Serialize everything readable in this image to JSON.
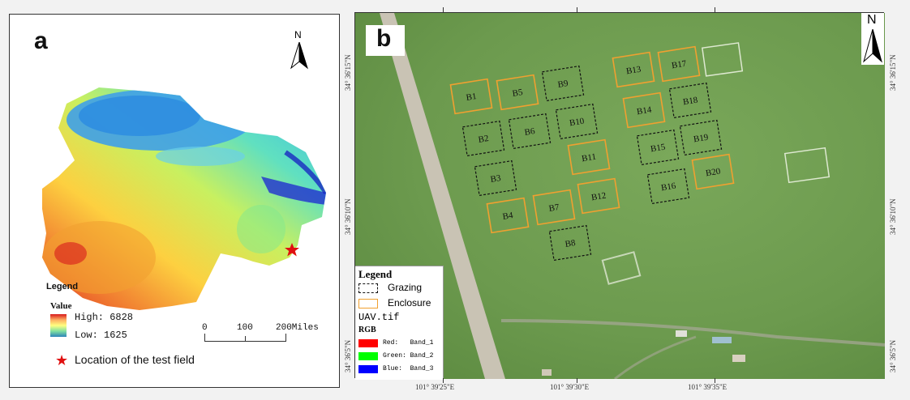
{
  "panel_a": {
    "letter": "a",
    "north": "N",
    "legend_title": "Legend",
    "value_label": "Value",
    "high": "High: 6828",
    "low": "Low: 1625",
    "scale_labels": [
      "0",
      "100",
      "200Miles"
    ],
    "location_label": "Location of the test field",
    "colors": {
      "high": "#d7191c",
      "mid_high": "#fdae61",
      "mid": "#ffff80",
      "mid_low": "#80e0a0",
      "low": "#2b83ba",
      "deep": "#1010c0"
    }
  },
  "panel_b": {
    "letter": "b",
    "north": "N",
    "plots": [
      {
        "id": "B1",
        "type": "enclosure"
      },
      {
        "id": "B2",
        "type": "grazing"
      },
      {
        "id": "B3",
        "type": "grazing"
      },
      {
        "id": "B4",
        "type": "enclosure"
      },
      {
        "id": "B5",
        "type": "enclosure"
      },
      {
        "id": "B6",
        "type": "grazing"
      },
      {
        "id": "B7",
        "type": "enclosure"
      },
      {
        "id": "B8",
        "type": "grazing"
      },
      {
        "id": "B9",
        "type": "grazing"
      },
      {
        "id": "B10",
        "type": "grazing"
      },
      {
        "id": "B11",
        "type": "enclosure"
      },
      {
        "id": "B12",
        "type": "enclosure"
      },
      {
        "id": "B13",
        "type": "enclosure"
      },
      {
        "id": "B14",
        "type": "enclosure"
      },
      {
        "id": "B15",
        "type": "grazing"
      },
      {
        "id": "B16",
        "type": "grazing"
      },
      {
        "id": "B17",
        "type": "enclosure"
      },
      {
        "id": "B18",
        "type": "grazing"
      },
      {
        "id": "B19",
        "type": "grazing"
      },
      {
        "id": "B20",
        "type": "enclosure"
      }
    ],
    "legend": {
      "title": "Legend",
      "grazing": "Grazing",
      "enclosure": "Enclosure",
      "raster": "UAV.tif",
      "rgb": "RGB",
      "bands": [
        {
          "label": "Red:   Band_1",
          "color": "#ff0000"
        },
        {
          "label": "Green: Band_2",
          "color": "#00ff00"
        },
        {
          "label": "Blue:  Band_3",
          "color": "#0000ff"
        }
      ]
    },
    "lon_labels": [
      "101° 39'25\"E",
      "101° 39'30\"E",
      "101° 39'35\"E"
    ],
    "lat_labels_left": [
      "34° 36'15\"N",
      "34° 36'10\"N",
      "34° 36'5\"N"
    ],
    "lat_labels_right": [
      "34° 36'15\"N",
      "34° 36'10\"N",
      "34° 36'5\"N"
    ],
    "colors": {
      "grazing": "#111111",
      "enclosure": "#f0a030",
      "grass": "#6c9a4e",
      "road": "#c9c3b4"
    }
  }
}
